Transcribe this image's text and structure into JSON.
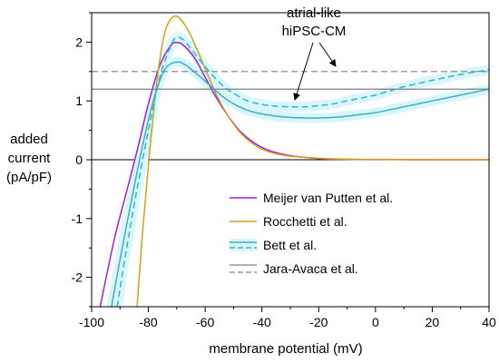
{
  "chart_data": {
    "type": "line",
    "title": "",
    "xlabel": "membrane potential (mV)",
    "ylabel_lines": [
      "added",
      "current",
      "(pA/pF)"
    ],
    "xlim": [
      -100,
      40
    ],
    "ylim": [
      -2.5,
      2.5
    ],
    "x_ticks": [
      -100,
      -80,
      -60,
      -40,
      -20,
      0,
      20,
      40
    ],
    "y_ticks": [
      -2,
      -1,
      0,
      1,
      2
    ],
    "grid": false,
    "legend_position": "bottom-right",
    "annotation": {
      "lines": [
        "atrial-like",
        "hiPSC-CM"
      ]
    },
    "zero_line": true,
    "series": [
      {
        "name": "Meijer van Putten et al.",
        "color": "#a020e0",
        "style": "solid",
        "x": [
          -97,
          -92,
          -88,
          -84,
          -80,
          -76,
          -72,
          -70,
          -68,
          -64,
          -60,
          -56,
          -52,
          -48,
          -44,
          -40,
          -35,
          -30,
          -25,
          -20,
          -15,
          -10,
          -5,
          0,
          10,
          20,
          40
        ],
        "y": [
          -2.5,
          -1.35,
          -0.6,
          0.15,
          0.95,
          1.6,
          1.95,
          1.99,
          1.96,
          1.75,
          1.4,
          1.05,
          0.75,
          0.5,
          0.33,
          0.21,
          0.12,
          0.07,
          0.04,
          0.02,
          0.01,
          0.006,
          0.003,
          0.002,
          0.001,
          0.0,
          0.0
        ]
      },
      {
        "name": "Rocchetti et al.",
        "color": "#d4a017",
        "style": "solid",
        "x": [
          -84,
          -82,
          -80,
          -78,
          -76,
          -74,
          -72,
          -70,
          -68,
          -66,
          -64,
          -60,
          -56,
          -52,
          -48,
          -44,
          -40,
          -35,
          -30,
          -25,
          -20,
          -15,
          -10,
          0,
          10,
          20,
          40
        ],
        "y": [
          -2.5,
          -1.2,
          -0.1,
          0.9,
          1.7,
          2.2,
          2.4,
          2.44,
          2.35,
          2.2,
          2.0,
          1.55,
          1.1,
          0.75,
          0.48,
          0.3,
          0.18,
          0.1,
          0.06,
          0.04,
          0.025,
          0.015,
          0.01,
          0.005,
          0.002,
          0.0,
          0.0
        ]
      },
      {
        "name": "Bett et al.",
        "color": "#3ab0c8",
        "style": "solid",
        "x": [
          -93,
          -90,
          -86,
          -82,
          -78,
          -74,
          -70,
          -68,
          -66,
          -62,
          -58,
          -54,
          -50,
          -45,
          -40,
          -35,
          -30,
          -25,
          -20,
          -15,
          -10,
          -5,
          0,
          5,
          10,
          20,
          30,
          40
        ],
        "y": [
          -2.5,
          -1.7,
          -0.7,
          0.25,
          1.05,
          1.55,
          1.66,
          1.64,
          1.58,
          1.42,
          1.25,
          1.08,
          0.95,
          0.84,
          0.78,
          0.74,
          0.72,
          0.71,
          0.71,
          0.72,
          0.74,
          0.77,
          0.8,
          0.85,
          0.9,
          1.0,
          1.1,
          1.2
        ]
      },
      {
        "name": "Bett et al. (atrial-like hiPSC-CM)",
        "color": "#3ab0c8",
        "style": "dashed",
        "x": [
          -91,
          -88,
          -84,
          -80,
          -76,
          -72,
          -70,
          -68,
          -66,
          -62,
          -58,
          -54,
          -50,
          -45,
          -40,
          -35,
          -30,
          -25,
          -20,
          -15,
          -10,
          -5,
          0,
          5,
          10,
          20,
          30,
          40
        ],
        "y": [
          -2.5,
          -1.6,
          -0.5,
          0.5,
          1.4,
          1.95,
          2.08,
          2.05,
          1.95,
          1.7,
          1.47,
          1.27,
          1.13,
          1.0,
          0.94,
          0.91,
          0.9,
          0.9,
          0.92,
          0.95,
          1.0,
          1.05,
          1.1,
          1.17,
          1.24,
          1.35,
          1.45,
          1.53
        ]
      },
      {
        "name": "Jara-Avaca et al.",
        "color": "#808080",
        "style": "solid",
        "x": [
          -100,
          40
        ],
        "y": [
          1.2,
          1.2
        ]
      },
      {
        "name": "Jara-Avaca et al. (atrial-like hiPSC-CM)",
        "color": "#808080",
        "style": "dashed",
        "x": [
          -100,
          40
        ],
        "y": [
          1.5,
          1.5
        ]
      }
    ],
    "legend": [
      {
        "label": "Meijer van Putten et al.",
        "color": "#a020e0",
        "style": "solid"
      },
      {
        "label": "Rocchetti et al.",
        "color": "#d4a017",
        "style": "solid"
      },
      {
        "label": "Bett et al.",
        "color": "#3ab0c8",
        "style": "band"
      },
      {
        "label": "Jara-Avaca et al.",
        "color": "#808080",
        "style": "pair"
      }
    ]
  }
}
